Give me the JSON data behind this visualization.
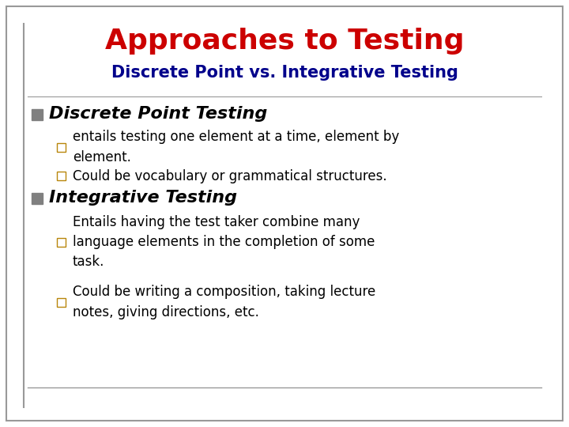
{
  "title": "Approaches to Testing",
  "subtitle": "Discrete Point vs. Integrative Testing",
  "title_color": "#CC0000",
  "subtitle_color": "#00008B",
  "background_color": "#FFFFFF",
  "border_color": "#999999",
  "bullet1_header": "Discrete Point Testing",
  "bullet1_sub1": "entails testing one element at a time, element by\nelement.",
  "bullet1_sub2": "Could be vocabulary or grammatical structures.",
  "bullet2_header": "Integrative Testing",
  "bullet2_sub1": "Entails having the test taker combine many\nlanguage elements in the completion of some\ntask.",
  "bullet2_sub2": "Could be writing a composition, taking lecture\nnotes, giving directions, etc.",
  "square_bullet_color": "#808080",
  "sub_bullet_color": "#B8860B",
  "body_text_color": "#000000",
  "header_text_color": "#000000",
  "title_fontsize": 26,
  "subtitle_fontsize": 15,
  "header_fontsize": 16,
  "body_fontsize": 12
}
